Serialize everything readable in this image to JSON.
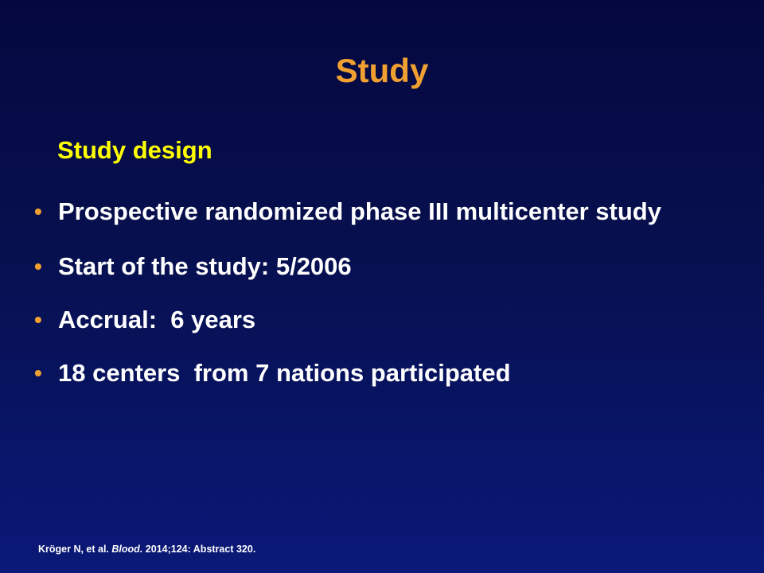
{
  "slide": {
    "title": "Study",
    "subtitle": "Study design",
    "bullets": [
      {
        "text": "Prospective randomized phase III multicenter study"
      },
      {
        "text": "Start of the study: 5/2006"
      },
      {
        "text": "Accrual:  6 years"
      },
      {
        "text": "18 centers  from 7 nations participated"
      }
    ],
    "citation": {
      "authors": "Kröger N, et al.",
      "journal": "Blood.",
      "details": "2014;124: Abstract 320."
    }
  },
  "colors": {
    "background_top": "#050840",
    "background_bottom": "#0a1878",
    "title": "#f0a030",
    "subtitle": "#ffff00",
    "bullet_mark": "#f0a030",
    "text": "#ffffff"
  }
}
